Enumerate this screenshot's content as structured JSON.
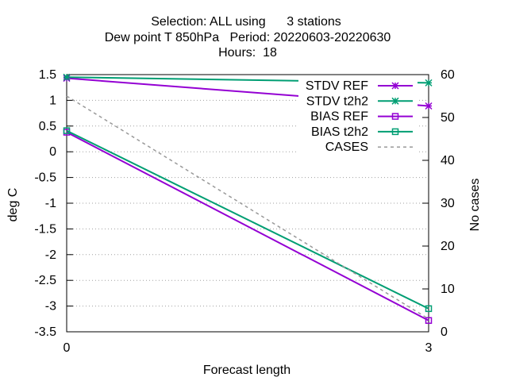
{
  "chart_data": {
    "type": "line",
    "title_lines": [
      "Selection: ALL using      3 stations",
      "Dew point T 850hPa   Period: 20220603-20220630",
      "Hours:  18"
    ],
    "xlabel": "Forecast length",
    "ylabel": "deg C",
    "y2label": "No cases",
    "x": [
      0,
      3
    ],
    "xlim": [
      0,
      3
    ],
    "ylim": [
      -3.5,
      1.5
    ],
    "y2lim": [
      0,
      60
    ],
    "xticks": [
      "0",
      "3"
    ],
    "yticks": [
      {
        "v": 1.5,
        "label": "1.5"
      },
      {
        "v": 1,
        "label": "1"
      },
      {
        "v": 0.5,
        "label": "0.5"
      },
      {
        "v": 0,
        "label": "0"
      },
      {
        "v": -0.5,
        "label": "-0.5"
      },
      {
        "v": -1,
        "label": "-1"
      },
      {
        "v": -1.5,
        "label": "-1.5"
      },
      {
        "v": -2,
        "label": "-2"
      },
      {
        "v": -2.5,
        "label": "-2.5"
      },
      {
        "v": -3,
        "label": "-3"
      },
      {
        "v": -3.5,
        "label": "-3.5"
      }
    ],
    "y2ticks": [
      {
        "v": 0,
        "label": "0"
      },
      {
        "v": 10,
        "label": "10"
      },
      {
        "v": 20,
        "label": "20"
      },
      {
        "v": 30,
        "label": "30"
      },
      {
        "v": 40,
        "label": "40"
      },
      {
        "v": 50,
        "label": "50"
      },
      {
        "v": 60,
        "label": "60"
      }
    ],
    "grid": true,
    "legend_position": "top-right",
    "series": [
      {
        "name": "STDV REF",
        "key": "stdv-ref",
        "values": [
          1.43,
          0.89
        ],
        "axis": "y1",
        "color": "#9400d3",
        "marker": "star",
        "dashed": false
      },
      {
        "name": "STDV t2h2",
        "key": "stdv-t2h2",
        "values": [
          1.45,
          1.34
        ],
        "axis": "y1",
        "color": "#009e73",
        "marker": "star",
        "dashed": false
      },
      {
        "name": "BIAS REF",
        "key": "bias-ref",
        "values": [
          0.38,
          -3.28
        ],
        "axis": "y1",
        "color": "#9400d3",
        "marker": "square",
        "dashed": false
      },
      {
        "name": "BIAS t2h2",
        "key": "bias-t2h2",
        "values": [
          0.41,
          -3.05
        ],
        "axis": "y1",
        "color": "#009e73",
        "marker": "square",
        "dashed": false
      },
      {
        "name": "CASES",
        "key": "cases",
        "values": [
          55,
          3
        ],
        "axis": "y2",
        "color": "#999999",
        "marker": "none",
        "dashed": true
      }
    ]
  }
}
